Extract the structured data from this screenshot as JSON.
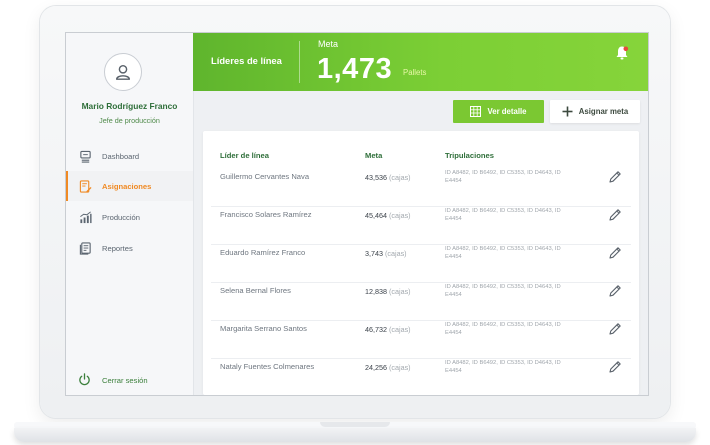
{
  "user": {
    "name": "Mario Rodríguez Franco",
    "role": "Jefe de producción"
  },
  "nav": {
    "items": [
      {
        "label": "Dashboard",
        "icon": "dashboard-icon",
        "active": false
      },
      {
        "label": "Asignaciones",
        "icon": "assignment-icon",
        "active": true
      },
      {
        "label": "Producción",
        "icon": "chart-icon",
        "active": false
      },
      {
        "label": "Reportes",
        "icon": "reports-icon",
        "active": false
      }
    ],
    "logout": "Cerrar sesión"
  },
  "header": {
    "title": "Líderes de línea",
    "meta_label": "Meta",
    "meta_value": "1,473",
    "meta_unit": "Pallets"
  },
  "buttons": {
    "detail": "Ver detalle",
    "assign": "Asignar meta"
  },
  "table": {
    "columns": [
      "Líder de línea",
      "Meta",
      "Tripulaciones"
    ],
    "rows": [
      {
        "leader": "Guillermo Cervantes Nava",
        "goal": "43,536",
        "unit": "(cajas)",
        "crews": "ID A8482, ID B6492, ID C5353, ID D4643, ID E4454"
      },
      {
        "leader": "Francisco Solares Ramírez",
        "goal": "45,464",
        "unit": "(cajas)",
        "crews": "ID A8482, ID B6492, ID C5353, ID D4643, ID E4454"
      },
      {
        "leader": "Eduardo Ramírez Franco",
        "goal": "3,743",
        "unit": "(cajas)",
        "crews": "ID A8482, ID B6492, ID C5353, ID D4643, ID E4454"
      },
      {
        "leader": "Selena Bernal Flores",
        "goal": "12,838",
        "unit": "(cajas)",
        "crews": "ID A8482, ID B6492, ID C5353, ID D4643, ID E4454"
      },
      {
        "leader": "Margarita Serrano Santos",
        "goal": "46,732",
        "unit": "(cajas)",
        "crews": "ID A8482, ID B6492, ID C5353, ID D4643, ID E4454"
      },
      {
        "leader": "Nataly Fuentes Colmenares",
        "goal": "24,256",
        "unit": "(cajas)",
        "crews": "ID A8482, ID B6492, ID C5353, ID D4643, ID E4454"
      }
    ]
  },
  "colors": {
    "accent_green": "#7bc832",
    "active_orange": "#f08a24",
    "title_green": "#2f6f3a",
    "notification_red": "#e8483b"
  }
}
